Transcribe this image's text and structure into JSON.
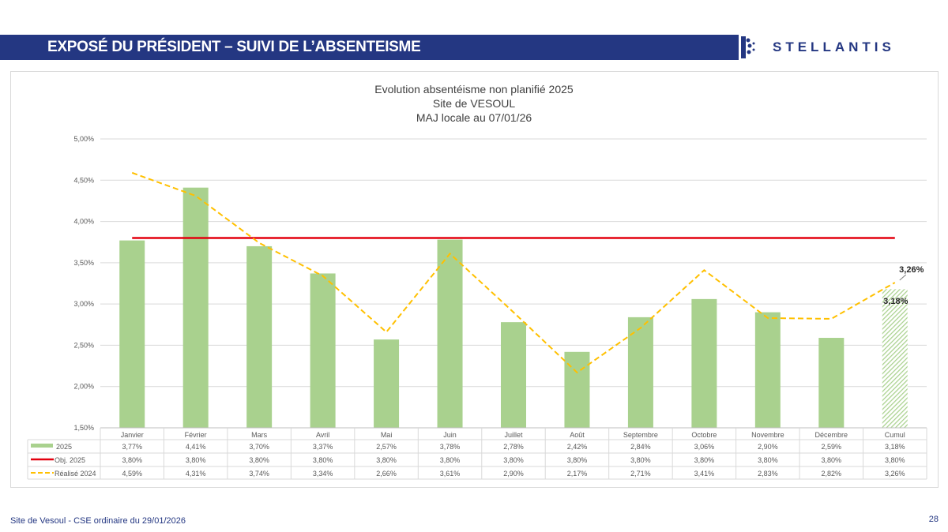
{
  "header": {
    "title": "EXPOSÉ DU PRÉSIDENT – SUIVI DE L’ABSENTEISME",
    "logo": "STELLANTIS"
  },
  "footer": {
    "text": "Site de Vesoul - CSE ordinaire du 29/01/2026",
    "page": "28"
  },
  "colors": {
    "banner": "#243782",
    "bars": "#a9d18e",
    "objective": "#e3000f",
    "previous": "#ffc000"
  },
  "chart_data": {
    "type": "bar",
    "title": [
      "Evolution absentéisme non planifié 2025",
      "Site de VESOUL",
      "MAJ locale au 07/01/26"
    ],
    "categories": [
      "Janvier",
      "Février",
      "Mars",
      "Avril",
      "Mai",
      "Juin",
      "Juillet",
      "Août",
      "Septembre",
      "Octobre",
      "Novembre",
      "Décembre",
      "Cumul"
    ],
    "ylim": [
      1.5,
      5.0
    ],
    "yticks": [
      "1,50%",
      "2,00%",
      "2,50%",
      "3,00%",
      "3,50%",
      "4,00%",
      "4,50%",
      "5,00%"
    ],
    "grid": true,
    "legend": "data-table",
    "series": [
      {
        "name": "2025",
        "type": "bar",
        "values": [
          3.77,
          4.41,
          3.7,
          3.37,
          2.57,
          3.78,
          2.78,
          2.42,
          2.84,
          3.06,
          2.9,
          2.59,
          3.18
        ],
        "labels": [
          "3,77%",
          "4,41%",
          "3,70%",
          "3,37%",
          "2,57%",
          "3,78%",
          "2,78%",
          "2,42%",
          "2,84%",
          "3,06%",
          "2,90%",
          "2,59%",
          "3,18%"
        ]
      },
      {
        "name": "Obj. 2025",
        "type": "line",
        "values": [
          3.8,
          3.8,
          3.8,
          3.8,
          3.8,
          3.8,
          3.8,
          3.8,
          3.8,
          3.8,
          3.8,
          3.8,
          3.8
        ],
        "labels": [
          "3,80%",
          "3,80%",
          "3,80%",
          "3,80%",
          "3,80%",
          "3,80%",
          "3,80%",
          "3,80%",
          "3,80%",
          "3,80%",
          "3,80%",
          "3,80%",
          "3,80%"
        ]
      },
      {
        "name": "Réalisé 2024",
        "type": "dashed-line",
        "values": [
          4.59,
          4.31,
          3.74,
          3.34,
          2.66,
          3.61,
          2.9,
          2.17,
          2.71,
          3.41,
          2.83,
          2.82,
          3.26
        ],
        "labels": [
          "4,59%",
          "4,31%",
          "3,74%",
          "3,34%",
          "2,66%",
          "3,61%",
          "2,90%",
          "2,17%",
          "2,71%",
          "3,41%",
          "2,83%",
          "2,82%",
          "3,26%"
        ]
      }
    ],
    "annotations": [
      "3,26%",
      "3,18%"
    ]
  }
}
